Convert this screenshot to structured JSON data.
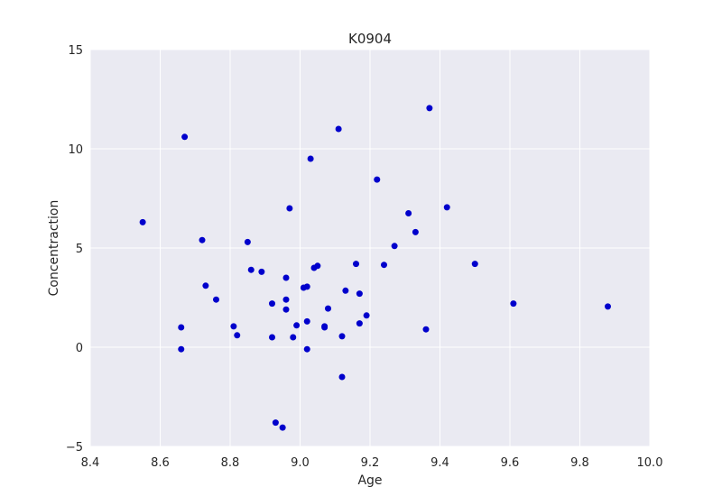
{
  "chart_data": {
    "type": "scatter",
    "title": "K0904",
    "xlabel": "Age",
    "ylabel": "Concentraction",
    "xlim": [
      8.4,
      10.0
    ],
    "ylim": [
      -5,
      15
    ],
    "xticks": [
      8.4,
      8.6,
      8.8,
      9.0,
      9.2,
      9.4,
      9.6,
      9.8,
      10.0
    ],
    "xtick_labels": [
      "8.4",
      "8.6",
      "8.8",
      "9.0",
      "9.2",
      "9.4",
      "9.6",
      "9.8",
      "10.0"
    ],
    "yticks": [
      -5,
      0,
      5,
      10,
      15
    ],
    "ytick_labels": [
      "−5",
      "0",
      "5",
      "10",
      "15"
    ],
    "grid": true,
    "colors": {
      "background": "#eaeaf2",
      "grid": "#ffffff",
      "marker": "#0000cc"
    },
    "series": [
      {
        "x": [
          8.55,
          8.66,
          8.66,
          8.67,
          8.72,
          8.73,
          8.76,
          8.81,
          8.82,
          8.85,
          8.86,
          8.89,
          8.92,
          8.92,
          8.93,
          8.95,
          8.96,
          8.96,
          8.96,
          8.97,
          8.98,
          8.99,
          9.01,
          9.02,
          9.02,
          9.02,
          9.03,
          9.04,
          9.05,
          9.07,
          9.07,
          9.08,
          9.11,
          9.12,
          9.12,
          9.13,
          9.16,
          9.17,
          9.17,
          9.19,
          9.22,
          9.24,
          9.27,
          9.31,
          9.33,
          9.36,
          9.37,
          9.42,
          9.5,
          9.61,
          9.88
        ],
        "y": [
          6.3,
          1.0,
          -0.1,
          10.6,
          5.4,
          3.1,
          2.4,
          1.05,
          0.6,
          5.3,
          3.9,
          3.8,
          2.2,
          0.5,
          -3.8,
          -4.05,
          3.5,
          2.4,
          1.9,
          7.0,
          0.5,
          1.1,
          3.0,
          3.05,
          1.3,
          -0.1,
          9.5,
          4.0,
          4.1,
          1.05,
          1.0,
          1.95,
          11.0,
          0.55,
          -1.5,
          2.85,
          4.2,
          2.7,
          1.2,
          1.6,
          8.45,
          4.15,
          5.1,
          6.75,
          5.8,
          0.9,
          12.05,
          7.05,
          4.2,
          2.2,
          2.05
        ]
      }
    ]
  }
}
